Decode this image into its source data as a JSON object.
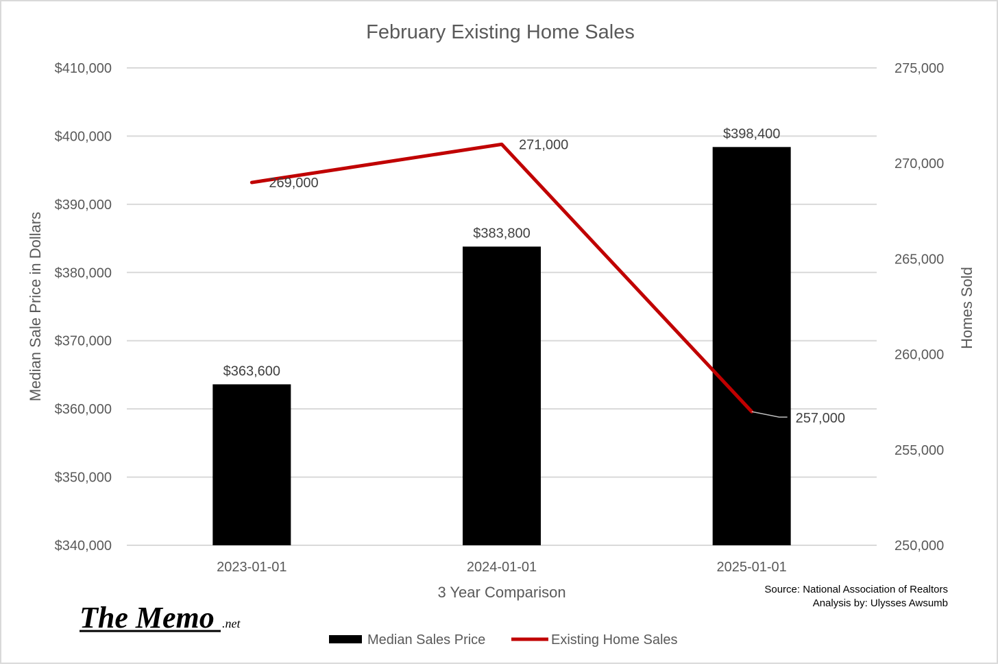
{
  "chart_data": {
    "type": "bar",
    "title": "February Existing Home Sales",
    "categories": [
      "2023-01-01",
      "2024-01-01",
      "2025-01-01"
    ],
    "xlabel": "3 Year Comparison",
    "y_left": {
      "label": "Median Sale Price in Dollars",
      "ylim": [
        340000,
        410000
      ],
      "ticks": [
        340000,
        350000,
        360000,
        370000,
        380000,
        390000,
        400000,
        410000
      ],
      "tick_labels": [
        "$340,000",
        "$350,000",
        "$360,000",
        "$370,000",
        "$380,000",
        "$390,000",
        "$400,000",
        "$410,000"
      ]
    },
    "y_right": {
      "label": "Homes Sold",
      "ylim": [
        250000,
        275000
      ],
      "ticks": [
        250000,
        255000,
        260000,
        265000,
        270000,
        275000
      ],
      "tick_labels": [
        "250,000",
        "255,000",
        "260,000",
        "265,000",
        "270,000",
        "275,000"
      ]
    },
    "series": [
      {
        "name": "Median Sales Price",
        "type": "bar",
        "axis": "left",
        "color": "#000000",
        "values": [
          363600,
          383800,
          398400
        ],
        "labels": [
          "$363,600",
          "$383,800",
          "$398,400"
        ]
      },
      {
        "name": "Existing Home Sales",
        "type": "line",
        "axis": "right",
        "color": "#c00000",
        "values": [
          269000,
          271000,
          257000
        ],
        "labels": [
          "269,000",
          "271,000",
          "257,000"
        ]
      }
    ],
    "grid": true,
    "legend_position": "bottom",
    "source_lines": [
      "Source: National Association of Realtors",
      "Analysis by: Ulysses Awsumb"
    ]
  },
  "logo": {
    "main": "The Memo",
    "suffix": ".net"
  },
  "colors": {
    "gridline": "#d9d9d9",
    "bar": "#000000",
    "line": "#c00000",
    "text": "#595959"
  }
}
